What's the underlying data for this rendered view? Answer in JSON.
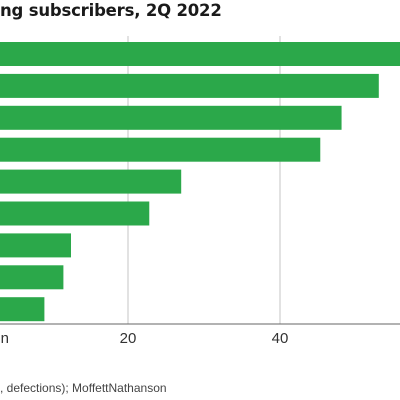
{
  "title": "ng subscribers, 2Q 2022",
  "source": ", defections); MoffettNathanson",
  "colors": {
    "bar": "#2ba84a",
    "grid": "#c4c4c4",
    "axis": "#666666"
  },
  "chart_data": {
    "type": "bar",
    "orientation": "horizontal",
    "title": "ng subscribers, 2Q 2022",
    "xlim": [
      0,
      55
    ],
    "xticks": [
      {
        "value": 0,
        "label": "n"
      },
      {
        "value": 20,
        "label": "20"
      },
      {
        "value": 40,
        "label": "40"
      }
    ],
    "grid": true,
    "values": [
      56,
      53,
      48.1,
      45.3,
      27,
      22.8,
      12.5,
      11.5,
      9
    ]
  }
}
